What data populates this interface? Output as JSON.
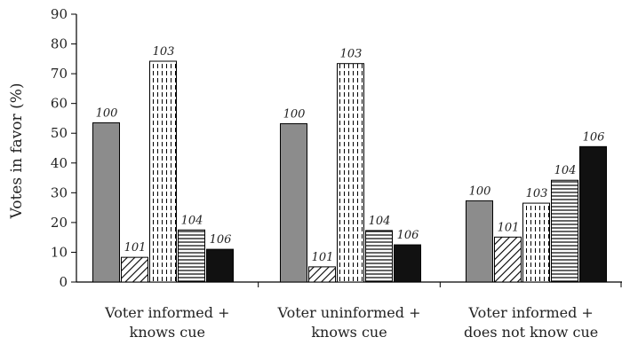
{
  "chart_data": {
    "type": "bar",
    "title": "",
    "xlabel": "",
    "ylabel": "Votes in favor (%)",
    "ylim": [
      0,
      90
    ],
    "yticks": [
      0,
      10,
      20,
      30,
      40,
      50,
      60,
      70,
      80,
      90
    ],
    "grid": false,
    "legend": "none",
    "categories": [
      [
        "Voter informed +",
        "knows cue"
      ],
      [
        "Voter uninformed +",
        "knows cue"
      ],
      [
        "Voter informed +",
        "does not know cue"
      ]
    ],
    "series": [
      {
        "name": "100",
        "pattern": "solid-gray",
        "color": "#8c8c8c",
        "values": [
          53.5,
          53.2,
          27.3
        ]
      },
      {
        "name": "101",
        "pattern": "diagonal-hatch",
        "color": "#000000",
        "values": [
          8.3,
          5.1,
          15.1
        ]
      },
      {
        "name": "103",
        "pattern": "vertical-dashed",
        "color": "#000000",
        "values": [
          74.2,
          73.4,
          26.5
        ]
      },
      {
        "name": "104",
        "pattern": "horizontal-lines",
        "color": "#000000",
        "values": [
          17.5,
          17.3,
          34.2
        ]
      },
      {
        "name": "106",
        "pattern": "solid-black",
        "color": "#111111",
        "values": [
          11.0,
          12.5,
          45.5
        ]
      }
    ]
  }
}
